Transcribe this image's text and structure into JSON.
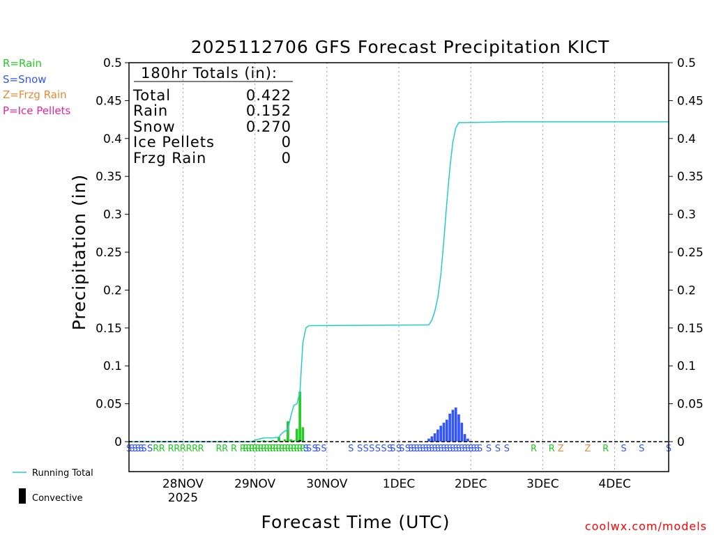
{
  "chart_data": {
    "type": "bar+line",
    "title": "2025112706 GFS Forecast Precipitation KICT",
    "xlabel": "Forecast Time (UTC)",
    "ylabel": "Precipitation (in)",
    "ylim": [
      0,
      0.5
    ],
    "yticks": [
      "0",
      "0.05",
      "0.1",
      "0.15",
      "0.2",
      "0.25",
      "0.3",
      "0.35",
      "0.4",
      "0.45",
      "0.5"
    ],
    "x_unit": "forecast hour",
    "xlim": [
      0,
      180
    ],
    "xticks": [
      {
        "label": "28NOV",
        "hour": 18,
        "sub": "2025"
      },
      {
        "label": "29NOV",
        "hour": 42,
        "sub": ""
      },
      {
        "label": "30NOV",
        "hour": 66,
        "sub": ""
      },
      {
        "label": "1DEC",
        "hour": 90,
        "sub": ""
      },
      {
        "label": "2DEC",
        "hour": 114,
        "sub": ""
      },
      {
        "label": "3DEC",
        "hour": 138,
        "sub": ""
      },
      {
        "label": "4DEC",
        "hour": 162,
        "sub": ""
      }
    ],
    "type_legend": [
      {
        "text": "R=Rain",
        "color": "#22cc22"
      },
      {
        "text": "S=Snow",
        "color": "#3355ff"
      },
      {
        "text": "Z=Frzg Rain",
        "color": "#ee8833"
      },
      {
        "text": "P=Ice Pellets",
        "color": "#ee2299"
      }
    ],
    "series_legend": {
      "running_total": "Running Total",
      "convective": "Convective"
    },
    "totals": {
      "header": "180hr Totals (in):",
      "rows": [
        {
          "label": "Total",
          "value": "0.422"
        },
        {
          "label": "Rain",
          "value": "0.152"
        },
        {
          "label": "Snow",
          "value": "0.270"
        },
        {
          "label": "Ice Pellets",
          "value": "0"
        },
        {
          "label": "Frzg Rain",
          "value": "0"
        }
      ]
    },
    "bars": [
      {
        "hour": 42,
        "value": 0.001,
        "type": "R"
      },
      {
        "hour": 43,
        "value": 0.001,
        "type": "R"
      },
      {
        "hour": 44,
        "value": 0.001,
        "type": "R"
      },
      {
        "hour": 45,
        "value": 0.002,
        "type": "R"
      },
      {
        "hour": 46,
        "value": 0.001,
        "type": "R"
      },
      {
        "hour": 47,
        "value": 0.001,
        "type": "R"
      },
      {
        "hour": 48,
        "value": 0.002,
        "type": "R"
      },
      {
        "hour": 49,
        "value": 0.001,
        "type": "R"
      },
      {
        "hour": 50,
        "value": 0.006,
        "type": "R"
      },
      {
        "hour": 51,
        "value": 0.001,
        "type": "R"
      },
      {
        "hour": 52,
        "value": 0.003,
        "type": "R"
      },
      {
        "hour": 53,
        "value": 0.027,
        "type": "R"
      },
      {
        "hour": 54,
        "value": 0.003,
        "type": "R"
      },
      {
        "hour": 55,
        "value": 0.002,
        "type": "R"
      },
      {
        "hour": 56,
        "value": 0.017,
        "type": "R"
      },
      {
        "hour": 57,
        "value": 0.066,
        "type": "R"
      },
      {
        "hour": 58,
        "value": 0.019,
        "type": "R"
      },
      {
        "hour": 100,
        "value": 0.004,
        "type": "S"
      },
      {
        "hour": 101,
        "value": 0.007,
        "type": "S"
      },
      {
        "hour": 102,
        "value": 0.011,
        "type": "S"
      },
      {
        "hour": 103,
        "value": 0.016,
        "type": "S"
      },
      {
        "hour": 104,
        "value": 0.021,
        "type": "S"
      },
      {
        "hour": 105,
        "value": 0.025,
        "type": "S"
      },
      {
        "hour": 106,
        "value": 0.029,
        "type": "S"
      },
      {
        "hour": 107,
        "value": 0.037,
        "type": "S"
      },
      {
        "hour": 108,
        "value": 0.042,
        "type": "S"
      },
      {
        "hour": 109,
        "value": 0.045,
        "type": "S"
      },
      {
        "hour": 110,
        "value": 0.036,
        "type": "S"
      },
      {
        "hour": 111,
        "value": 0.025,
        "type": "S"
      },
      {
        "hour": 112,
        "value": 0.01,
        "type": "S"
      },
      {
        "hour": 113,
        "value": 0.004,
        "type": "S"
      },
      {
        "hour": 114,
        "value": 0.001,
        "type": "S"
      }
    ],
    "convective": [
      {
        "hour": 57,
        "value": 0.002
      }
    ],
    "running_total": [
      [
        0,
        0
      ],
      [
        41,
        0
      ],
      [
        42,
        0.002
      ],
      [
        43,
        0.003
      ],
      [
        44,
        0.004
      ],
      [
        45,
        0.005
      ],
      [
        48,
        0.005
      ],
      [
        50,
        0.006
      ],
      [
        51,
        0.011
      ],
      [
        52,
        0.014
      ],
      [
        53,
        0.016
      ],
      [
        54,
        0.034
      ],
      [
        55,
        0.048
      ],
      [
        56,
        0.05
      ],
      [
        57,
        0.065
      ],
      [
        58,
        0.131
      ],
      [
        59,
        0.15
      ],
      [
        60,
        0.153
      ],
      [
        100,
        0.154
      ],
      [
        101,
        0.16
      ],
      [
        102,
        0.172
      ],
      [
        103,
        0.19
      ],
      [
        104,
        0.22
      ],
      [
        105,
        0.265
      ],
      [
        106,
        0.315
      ],
      [
        107,
        0.36
      ],
      [
        108,
        0.395
      ],
      [
        109,
        0.414
      ],
      [
        110,
        0.421
      ],
      [
        112,
        0.421
      ],
      [
        126,
        0.422
      ],
      [
        180,
        0.422
      ]
    ],
    "ptype_row": [
      {
        "hour": 0,
        "t": "S"
      },
      {
        "hour": 1,
        "t": "S"
      },
      {
        "hour": 2,
        "t": "S"
      },
      {
        "hour": 3,
        "t": "S"
      },
      {
        "hour": 4,
        "t": "S"
      },
      {
        "hour": 5,
        "t": "S"
      },
      {
        "hour": 7,
        "t": "S"
      },
      {
        "hour": 9,
        "t": "R"
      },
      {
        "hour": 11,
        "t": "R"
      },
      {
        "hour": 14,
        "t": "R"
      },
      {
        "hour": 16,
        "t": "R"
      },
      {
        "hour": 18,
        "t": "R"
      },
      {
        "hour": 20,
        "t": "R"
      },
      {
        "hour": 22,
        "t": "R"
      },
      {
        "hour": 24,
        "t": "R"
      },
      {
        "hour": 30,
        "t": "R"
      },
      {
        "hour": 32,
        "t": "R"
      },
      {
        "hour": 35,
        "t": "R"
      },
      {
        "hour": 38,
        "t": "R"
      },
      {
        "hour": 39,
        "t": "R"
      },
      {
        "hour": 40,
        "t": "R"
      },
      {
        "hour": 41,
        "t": "R"
      },
      {
        "hour": 42,
        "t": "R"
      },
      {
        "hour": 43,
        "t": "R"
      },
      {
        "hour": 44,
        "t": "R"
      },
      {
        "hour": 45,
        "t": "R"
      },
      {
        "hour": 46,
        "t": "R"
      },
      {
        "hour": 47,
        "t": "R"
      },
      {
        "hour": 48,
        "t": "R"
      },
      {
        "hour": 49,
        "t": "R"
      },
      {
        "hour": 50,
        "t": "R"
      },
      {
        "hour": 51,
        "t": "R"
      },
      {
        "hour": 52,
        "t": "R"
      },
      {
        "hour": 53,
        "t": "R"
      },
      {
        "hour": 54,
        "t": "R"
      },
      {
        "hour": 55,
        "t": "R"
      },
      {
        "hour": 56,
        "t": "R"
      },
      {
        "hour": 57,
        "t": "R"
      },
      {
        "hour": 58,
        "t": "R"
      },
      {
        "hour": 59,
        "t": "S"
      },
      {
        "hour": 60,
        "t": "S"
      },
      {
        "hour": 62,
        "t": "S"
      },
      {
        "hour": 63,
        "t": "S"
      },
      {
        "hour": 65,
        "t": "S"
      },
      {
        "hour": 74,
        "t": "S"
      },
      {
        "hour": 77,
        "t": "S"
      },
      {
        "hour": 79,
        "t": "S"
      },
      {
        "hour": 81,
        "t": "S"
      },
      {
        "hour": 83,
        "t": "S"
      },
      {
        "hour": 85,
        "t": "S"
      },
      {
        "hour": 87,
        "t": "S"
      },
      {
        "hour": 88,
        "t": "S"
      },
      {
        "hour": 90,
        "t": "S"
      },
      {
        "hour": 91,
        "t": "S"
      },
      {
        "hour": 93,
        "t": "S"
      },
      {
        "hour": 94,
        "t": "S"
      },
      {
        "hour": 95,
        "t": "S"
      },
      {
        "hour": 96,
        "t": "S"
      },
      {
        "hour": 97,
        "t": "S"
      },
      {
        "hour": 98,
        "t": "S"
      },
      {
        "hour": 99,
        "t": "S"
      },
      {
        "hour": 100,
        "t": "S"
      },
      {
        "hour": 101,
        "t": "S"
      },
      {
        "hour": 102,
        "t": "S"
      },
      {
        "hour": 103,
        "t": "S"
      },
      {
        "hour": 104,
        "t": "S"
      },
      {
        "hour": 105,
        "t": "S"
      },
      {
        "hour": 106,
        "t": "S"
      },
      {
        "hour": 107,
        "t": "S"
      },
      {
        "hour": 108,
        "t": "S"
      },
      {
        "hour": 109,
        "t": "S"
      },
      {
        "hour": 110,
        "t": "S"
      },
      {
        "hour": 111,
        "t": "S"
      },
      {
        "hour": 112,
        "t": "S"
      },
      {
        "hour": 113,
        "t": "S"
      },
      {
        "hour": 114,
        "t": "S"
      },
      {
        "hour": 115,
        "t": "S"
      },
      {
        "hour": 116,
        "t": "S"
      },
      {
        "hour": 117,
        "t": "S"
      },
      {
        "hour": 120,
        "t": "S"
      },
      {
        "hour": 123,
        "t": "S"
      },
      {
        "hour": 126,
        "t": "S"
      },
      {
        "hour": 135,
        "t": "R"
      },
      {
        "hour": 141,
        "t": "R"
      },
      {
        "hour": 144,
        "t": "Z"
      },
      {
        "hour": 153,
        "t": "Z"
      },
      {
        "hour": 159,
        "t": "R"
      },
      {
        "hour": 165,
        "t": "S"
      },
      {
        "hour": 171,
        "t": "S"
      },
      {
        "hour": 180,
        "t": "S"
      }
    ]
  },
  "footer": {
    "credit": "coolwx.com/models"
  }
}
